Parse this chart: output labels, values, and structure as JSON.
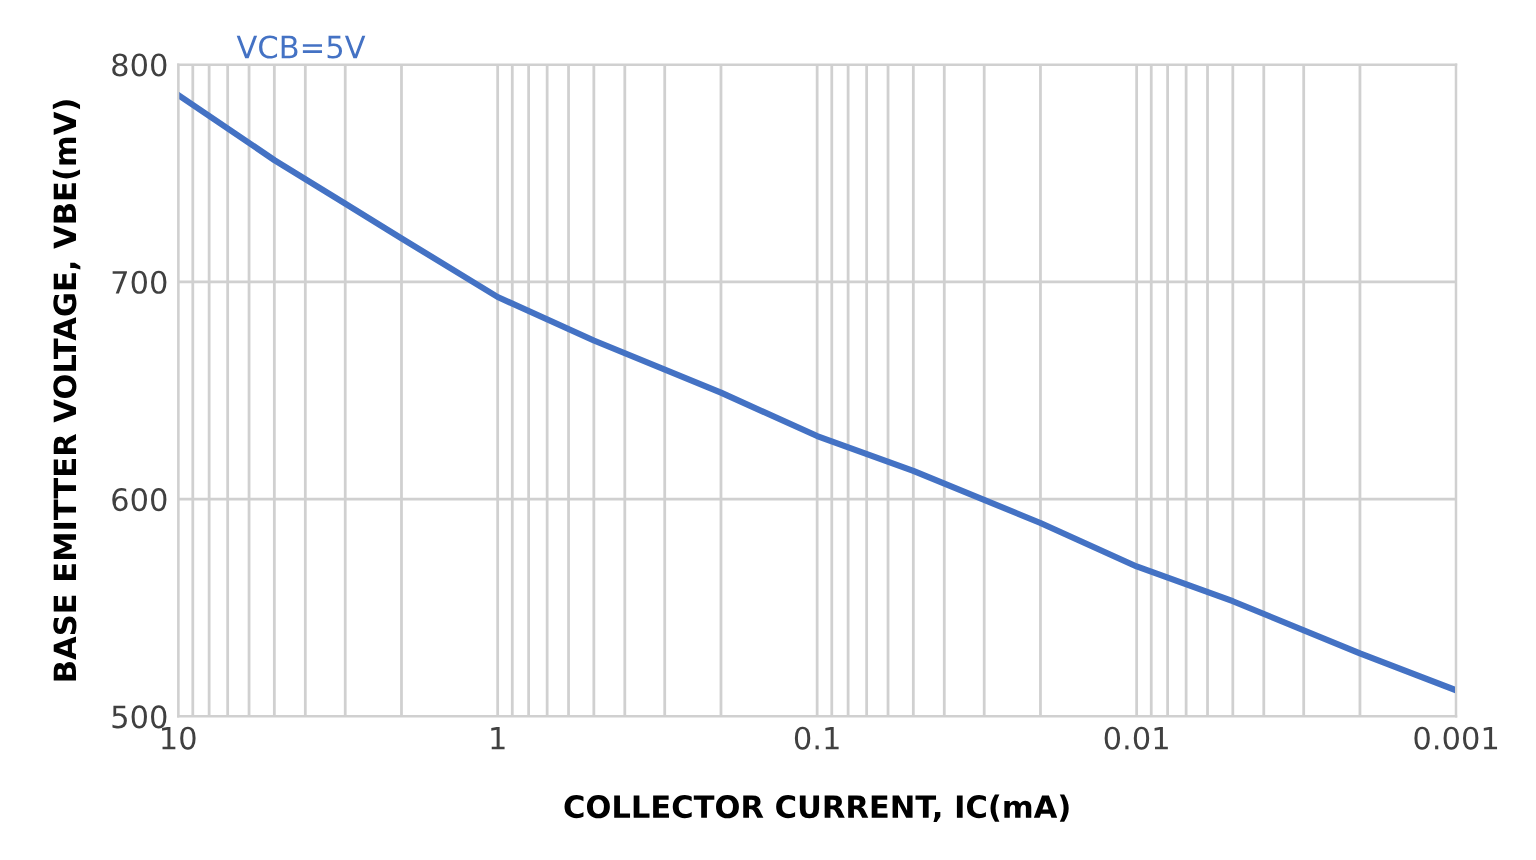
{
  "chart_data": {
    "type": "line",
    "xlabel": "COLLECTOR CURRENT, IC(mA)",
    "ylabel": "BASE EMITTER VOLTAGE, VBE(mV)",
    "log": "x",
    "grid": true,
    "xlim": [
      10,
      0.001
    ],
    "xticks": [
      10,
      1,
      0.1,
      0.01,
      0.001
    ],
    "ylim": [
      500,
      800
    ],
    "yticks": [
      500,
      600,
      700,
      800
    ],
    "series": [
      {
        "name": "VCB=5V",
        "color": "#4472c4",
        "x": [
          10,
          5,
          3,
          2,
          1,
          0.5,
          0.2,
          0.1,
          0.05,
          0.02,
          0.01,
          0.005,
          0.002,
          0.001
        ],
        "values": [
          786,
          756,
          736,
          720,
          693,
          673,
          649,
          629,
          613,
          589,
          569,
          553,
          529,
          512
        ]
      }
    ]
  }
}
